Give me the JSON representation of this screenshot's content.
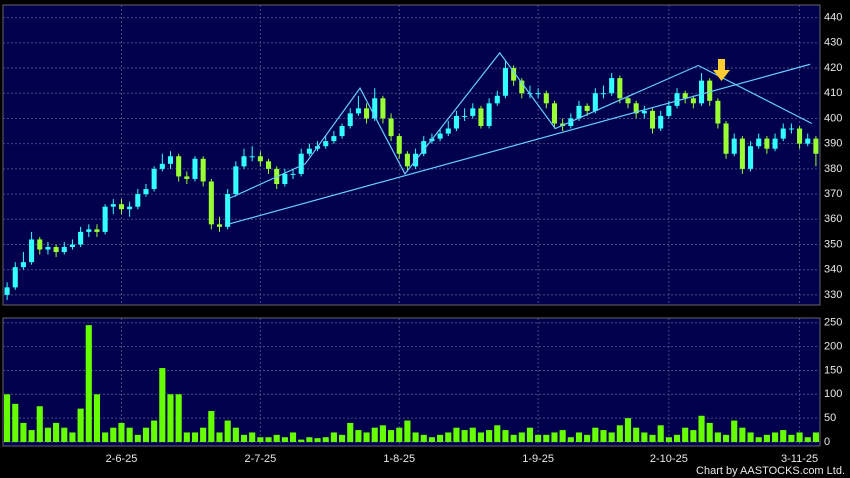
{
  "chart_data": [
    {
      "type": "candlestick",
      "up_color": "#33ffff",
      "down_color": "#99ff33",
      "grid": true,
      "xlim": [
        -0.5,
        99.5
      ],
      "xticks": [
        {
          "value": 14,
          "label": "2-6-25"
        },
        {
          "value": 31,
          "label": "2-7-25"
        },
        {
          "value": 48,
          "label": "1-8-25"
        },
        {
          "value": 65,
          "label": "1-9-25"
        },
        {
          "value": 81,
          "label": "2-10-25"
        },
        {
          "value": 97,
          "label": "3-11-25"
        }
      ],
      "ylim": [
        326,
        445
      ],
      "yticks": [
        330,
        340,
        350,
        360,
        370,
        380,
        390,
        400,
        410,
        420,
        430,
        440
      ],
      "open": [
        330,
        333,
        341,
        343,
        352,
        348,
        349,
        347,
        349,
        350,
        355,
        356,
        355,
        365,
        366,
        364,
        365,
        370,
        372,
        380,
        382,
        385,
        377,
        376,
        384,
        375,
        358,
        357,
        370,
        381,
        385,
        385,
        383,
        380,
        374,
        378,
        378,
        386,
        388,
        389,
        391,
        393,
        397,
        402,
        404,
        400,
        408,
        400,
        393,
        386,
        381,
        386,
        391,
        392,
        394,
        396,
        401,
        401,
        404,
        397,
        406,
        409,
        420,
        415,
        410,
        410,
        410,
        406,
        398,
        397,
        400,
        405,
        403,
        410,
        410,
        416,
        408,
        406,
        402,
        403,
        396,
        401,
        405,
        410,
        408,
        406,
        415,
        407,
        398,
        386,
        392,
        380,
        389,
        392,
        388,
        392,
        396,
        396,
        390,
        392
      ],
      "high": [
        335,
        343,
        347,
        355,
        353,
        351,
        350,
        351,
        352,
        357,
        358,
        358,
        366,
        368,
        368,
        367,
        372,
        374,
        381,
        386,
        387,
        386,
        379,
        385,
        385,
        376,
        361,
        372,
        383,
        388,
        389,
        387,
        384,
        381,
        380,
        380,
        388,
        390,
        391,
        393,
        395,
        398,
        404,
        409,
        406,
        412,
        409,
        402,
        394,
        387,
        388,
        393,
        394,
        396,
        399,
        403,
        404,
        406,
        405,
        408,
        411,
        423,
        421,
        416,
        413,
        412,
        411,
        407,
        400,
        402,
        407,
        406,
        412,
        413,
        418,
        417,
        409,
        407,
        405,
        404,
        403,
        407,
        412,
        411,
        409,
        418,
        416,
        408,
        399,
        394,
        393,
        391,
        394,
        393,
        394,
        398,
        398,
        397,
        394,
        393
      ],
      "low": [
        328,
        332,
        340,
        342,
        346,
        346,
        345,
        346,
        348,
        349,
        353,
        353,
        354,
        362,
        362,
        361,
        364,
        369,
        371,
        379,
        380,
        375,
        374,
        375,
        373,
        356,
        355,
        356,
        369,
        380,
        383,
        381,
        378,
        372,
        373,
        376,
        377,
        385,
        387,
        388,
        390,
        392,
        396,
        401,
        398,
        399,
        398,
        391,
        384,
        379,
        380,
        385,
        390,
        391,
        393,
        395,
        399,
        400,
        396,
        396,
        405,
        408,
        413,
        408,
        408,
        408,
        404,
        396,
        395,
        396,
        399,
        401,
        402,
        408,
        409,
        406,
        404,
        400,
        400,
        394,
        395,
        400,
        404,
        406,
        404,
        405,
        405,
        396,
        384,
        385,
        378,
        379,
        388,
        386,
        387,
        391,
        394,
        388,
        389,
        381
      ],
      "close": [
        333,
        341,
        343,
        352,
        348,
        349,
        347,
        349,
        350,
        355,
        356,
        355,
        365,
        366,
        364,
        365,
        370,
        372,
        380,
        382,
        385,
        377,
        376,
        384,
        375,
        358,
        357,
        370,
        381,
        385,
        385,
        383,
        380,
        374,
        378,
        378,
        386,
        388,
        389,
        391,
        393,
        397,
        402,
        404,
        400,
        408,
        400,
        393,
        386,
        381,
        386,
        391,
        392,
        394,
        396,
        401,
        401,
        404,
        397,
        406,
        409,
        420,
        415,
        410,
        410,
        410,
        406,
        398,
        397,
        400,
        405,
        403,
        410,
        410,
        416,
        408,
        406,
        402,
        403,
        396,
        401,
        405,
        410,
        408,
        406,
        415,
        407,
        398,
        386,
        392,
        380,
        389,
        392,
        388,
        392,
        396,
        396,
        390,
        392,
        386
      ],
      "trend_color": "#66ccff",
      "trend_lines": [
        {
          "x": [
            27,
            98.3
          ],
          "y": [
            358,
            421.5
          ]
        },
        {
          "x": [
            27,
            36.5,
            43.2,
            48.7,
            60.3,
            67.1,
            84.6,
            98.5
          ],
          "y": [
            368,
            382,
            412,
            378,
            426,
            396,
            421,
            398
          ]
        }
      ]
    },
    {
      "type": "bar",
      "color": "#66ff00",
      "grid": true,
      "xlim": [
        -0.5,
        99.5
      ],
      "ylim": [
        0,
        260
      ],
      "yticks": [
        0,
        50,
        100,
        150,
        200,
        250
      ],
      "values": [
        100,
        80,
        40,
        25,
        75,
        30,
        40,
        30,
        20,
        70,
        245,
        100,
        20,
        30,
        40,
        30,
        15,
        30,
        45,
        155,
        100,
        100,
        20,
        20,
        30,
        65,
        20,
        45,
        30,
        15,
        20,
        10,
        10,
        15,
        10,
        20,
        5,
        10,
        8,
        10,
        20,
        15,
        40,
        25,
        20,
        30,
        35,
        25,
        30,
        45,
        20,
        15,
        10,
        15,
        20,
        30,
        25,
        30,
        20,
        25,
        35,
        25,
        15,
        20,
        30,
        15,
        15,
        20,
        25,
        10,
        20,
        15,
        30,
        25,
        20,
        35,
        50,
        30,
        20,
        15,
        35,
        10,
        15,
        30,
        25,
        55,
        40,
        20,
        15,
        45,
        30,
        20,
        10,
        15,
        20,
        25,
        15,
        20,
        10,
        20
      ],
      "source": "Chart by AASTOCKS.com Ltd."
    }
  ]
}
